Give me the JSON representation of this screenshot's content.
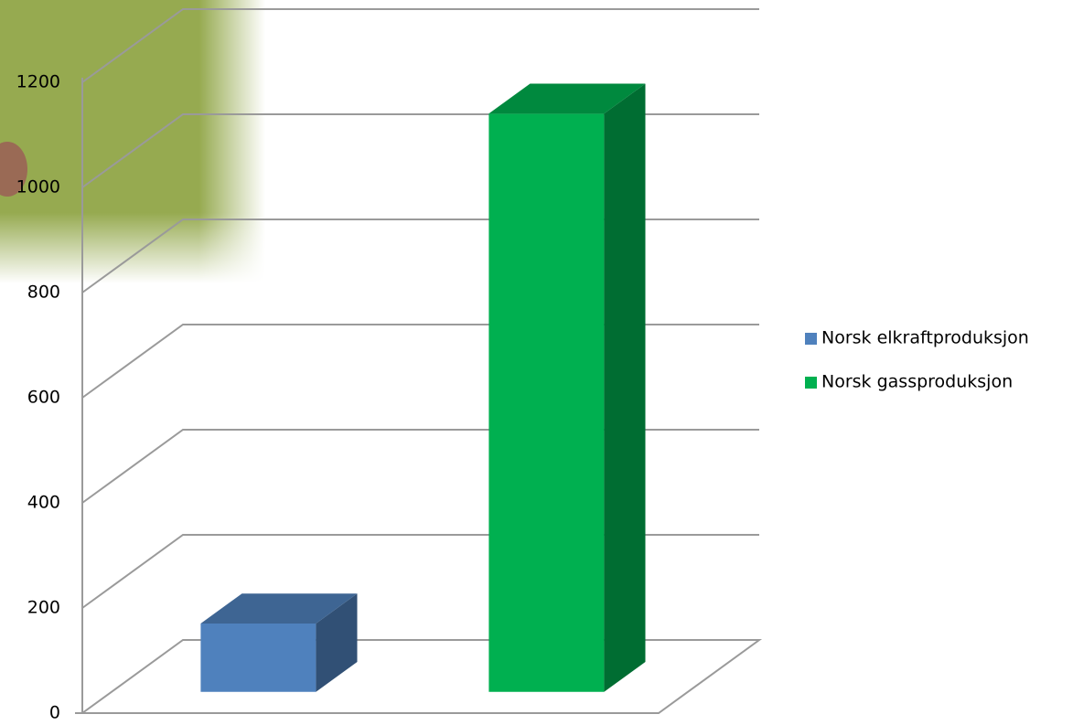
{
  "chart_data": {
    "type": "bar3d",
    "series": [
      {
        "name": "Norsk elkraftproduksjon",
        "color": "#4f81bd",
        "values": [
          130
        ]
      },
      {
        "name": "Norsk gassproduksjon",
        "color": "#00b050",
        "values": [
          1100
        ]
      }
    ],
    "ylim": [
      0,
      1200
    ],
    "yticks": [
      0,
      200,
      400,
      600,
      800,
      1000,
      1200
    ],
    "grid": true,
    "legend": "right"
  }
}
